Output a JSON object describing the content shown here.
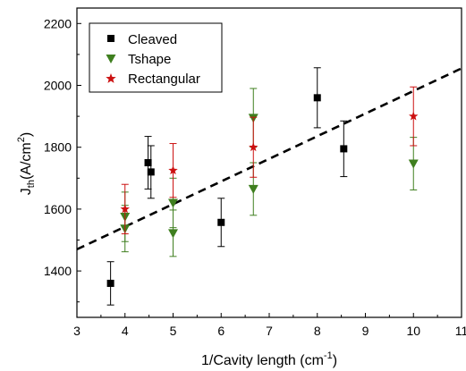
{
  "chart_data": {
    "type": "scatter",
    "xlabel": {
      "main": "1/Cavity length (cm",
      "sup": "-1",
      "close": ")"
    },
    "ylabel": {
      "main": "J",
      "sub": "th",
      "unit": "(A/cm",
      "sup": "2",
      "close": ")"
    },
    "xlim": [
      3,
      11
    ],
    "ylim": [
      1250,
      2250
    ],
    "x_ticks": [
      3,
      4,
      5,
      6,
      7,
      8,
      9,
      10,
      11
    ],
    "x_tick_labels": [
      "3",
      "4",
      "5",
      "6",
      "7",
      "8",
      "9",
      "10",
      "11"
    ],
    "y_ticks": [
      1400,
      1600,
      1800,
      2000,
      2200
    ],
    "y_tick_labels": [
      "1400",
      "1600",
      "1800",
      "2000",
      "2200"
    ],
    "legend": {
      "position": "top-left"
    },
    "grid": false,
    "series": [
      {
        "name": "Cleaved",
        "marker": "square",
        "color": "#000000",
        "error_color": "#000000",
        "points": [
          {
            "x": 3.7,
            "y": 1360,
            "err": 70
          },
          {
            "x": 4.48,
            "y": 1750,
            "err": 85
          },
          {
            "x": 4.54,
            "y": 1720,
            "err": 85
          },
          {
            "x": 6.0,
            "y": 1557,
            "err": 78
          },
          {
            "x": 8.0,
            "y": 1960,
            "err": 97
          },
          {
            "x": 8.55,
            "y": 1795,
            "err": 90
          }
        ]
      },
      {
        "name": "Tshape",
        "marker": "triangle-down",
        "color": "#3f7f1f",
        "error_color": "#3f7f1f",
        "points": [
          {
            "x": 4.0,
            "y": 1575,
            "err": 80
          },
          {
            "x": 4.0,
            "y": 1537,
            "err": 75
          },
          {
            "x": 5.0,
            "y": 1620,
            "err": 80
          },
          {
            "x": 5.0,
            "y": 1522,
            "err": 75
          },
          {
            "x": 6.67,
            "y": 1895,
            "err": 95
          },
          {
            "x": 6.67,
            "y": 1665,
            "err": 85
          },
          {
            "x": 10.0,
            "y": 1747,
            "err": 85
          }
        ]
      },
      {
        "name": "Rectangular",
        "marker": "star",
        "color": "#cc1111",
        "error_color": "#cc1111",
        "points": [
          {
            "x": 4.0,
            "y": 1600,
            "err": 80
          },
          {
            "x": 5.0,
            "y": 1725,
            "err": 87
          },
          {
            "x": 6.67,
            "y": 1800,
            "err": 97
          },
          {
            "x": 10.0,
            "y": 1900,
            "err": 95
          }
        ]
      }
    ],
    "fit_line": {
      "style": "dashed",
      "color": "#000000",
      "points": [
        [
          3,
          1470
        ],
        [
          11,
          2055
        ]
      ]
    }
  }
}
